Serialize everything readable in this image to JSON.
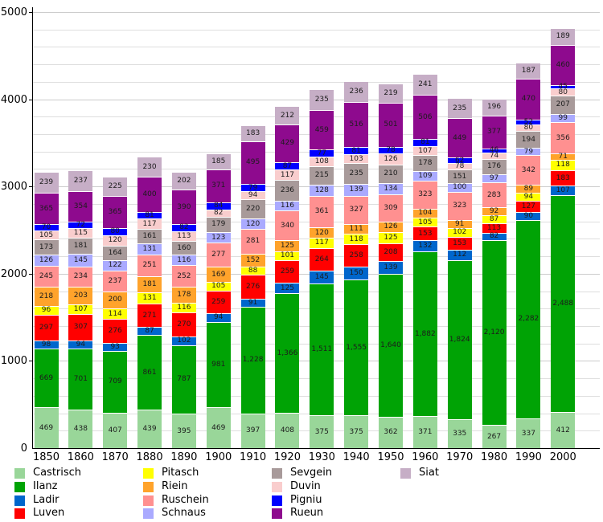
{
  "chart_data": {
    "type": "bar",
    "stacked": true,
    "title": "",
    "xlabel": "",
    "ylabel": "",
    "ylim": [
      0,
      5000
    ],
    "grid": true,
    "legend_position": "bottom",
    "categories": [
      "1850",
      "1860",
      "1870",
      "1880",
      "1890",
      "1900",
      "1910",
      "1920",
      "1930",
      "1940",
      "1950",
      "1960",
      "1970",
      "1980",
      "1990",
      "2000"
    ],
    "series": [
      {
        "name": "Castrisch",
        "color": "#99D699",
        "values": [
          469,
          438,
          407,
          439,
          395,
          469,
          397,
          408,
          375,
          375,
          362,
          371,
          335,
          267,
          337,
          412
        ]
      },
      {
        "name": "Ilanz",
        "color": "#00A305",
        "values": [
          669,
          701,
          709,
          861,
          787,
          981,
          1228,
          1366,
          1511,
          1555,
          1640,
          1882,
          1824,
          2120,
          2282,
          2488
        ]
      },
      {
        "name": "Ladir",
        "color": "#0066CC",
        "values": [
          98,
          94,
          93,
          87,
          102,
          94,
          91,
          125,
          145,
          150,
          139,
          132,
          112,
          82,
          90,
          107
        ]
      },
      {
        "name": "Luven",
        "color": "#FF0000",
        "values": [
          297,
          307,
          276,
          271,
          270,
          259,
          276,
          259,
          264,
          258,
          208,
          153,
          153,
          113,
          127,
          183
        ]
      },
      {
        "name": "Pitasch",
        "color": "#FFFF00",
        "values": [
          96,
          107,
          114,
          131,
          116,
          105,
          88,
          101,
          117,
          118,
          125,
          105,
          102,
          87,
          94,
          118
        ]
      },
      {
        "name": "Riein",
        "color": "#FFA32B",
        "values": [
          218,
          203,
          200,
          181,
          178,
          169,
          152,
          125,
          120,
          111,
          126,
          104,
          91,
          92,
          89,
          71
        ]
      },
      {
        "name": "Ruschein",
        "color": "#FF9090",
        "values": [
          245,
          234,
          237,
          251,
          252,
          277,
          281,
          340,
          361,
          327,
          309,
          323,
          323,
          283,
          342,
          356
        ]
      },
      {
        "name": "Schnaus",
        "color": "#AAAAFF",
        "values": [
          126,
          145,
          122,
          131,
          116,
          123,
          120,
          116,
          128,
          139,
          134,
          109,
          100,
          97,
          79,
          99
        ]
      },
      {
        "name": "Sevgein",
        "color": "#A89A9A",
        "values": [
          173,
          181,
          164,
          161,
          160,
          179,
          220,
          236,
          215,
          235,
          210,
          178,
          151,
          176,
          194,
          207
        ]
      },
      {
        "name": "Duvin",
        "color": "#F9CDCD",
        "values": [
          105,
          115,
          120,
          117,
          113,
          82,
          94,
          117,
          108,
          103,
          126,
          107,
          78,
          74,
          80,
          80
        ]
      },
      {
        "name": "Pigniu",
        "color": "#0000FF",
        "values": [
          70,
          72,
          80,
          81,
          82,
          84,
          79,
          87,
          77,
          81,
          78,
          81,
          62,
          46,
          52,
          45
        ]
      },
      {
        "name": "Rueun",
        "color": "#8E0A8E",
        "values": [
          365,
          354,
          365,
          400,
          390,
          371,
          495,
          429,
          459,
          516,
          501,
          506,
          449,
          377,
          470,
          460
        ]
      },
      {
        "name": "Siat",
        "color": "#C6AEC6",
        "values": [
          239,
          237,
          225,
          230,
          202,
          185,
          183,
          212,
          235,
          236,
          219,
          241,
          235,
          196,
          187,
          189
        ]
      }
    ]
  },
  "y_axis": {
    "max": 5000,
    "tick_interval": 1000,
    "minor_interval": 200,
    "labels": [
      "0",
      "1000",
      "2000",
      "3000",
      "4000",
      "5000"
    ]
  },
  "legend": {
    "columns": [
      [
        0,
        1,
        2,
        3
      ],
      [
        4,
        5,
        6,
        7
      ],
      [
        8,
        9,
        10,
        11
      ],
      [
        12
      ]
    ]
  }
}
